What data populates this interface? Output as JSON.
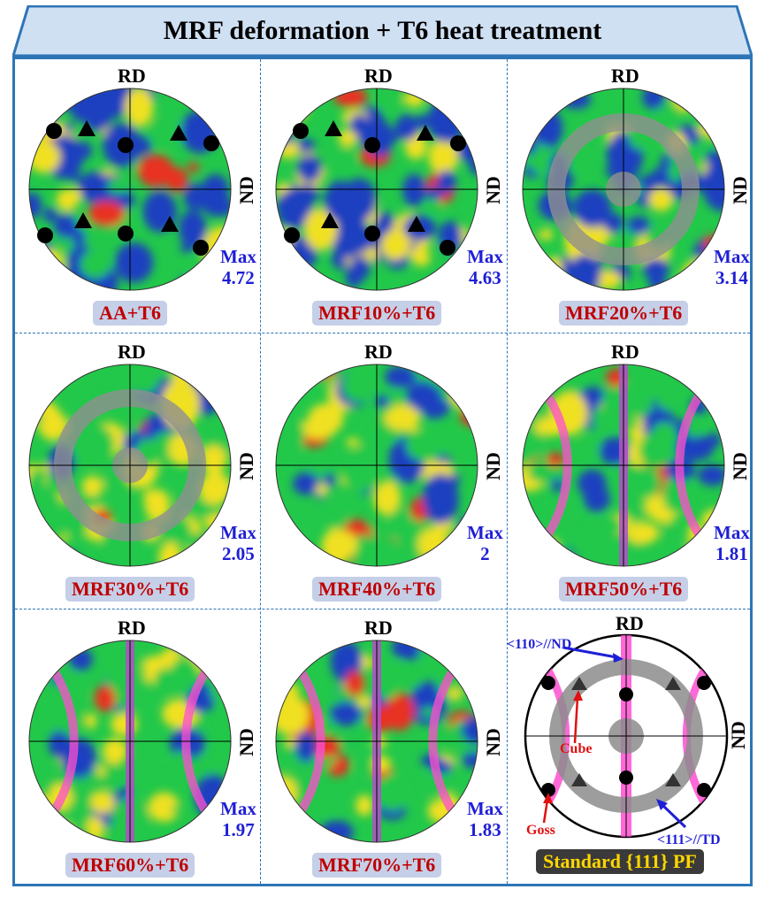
{
  "title": "MRF deformation + T6 heat treatment",
  "axis_labels": {
    "rd": "RD",
    "nd": "ND"
  },
  "max_prefix": "Max",
  "panels": [
    {
      "caption": "AA+T6",
      "max_value": "4.72",
      "overlay": "cube-goss-markers"
    },
    {
      "caption": "MRF10%+T6",
      "max_value": "4.63",
      "overlay": "cube-goss-markers"
    },
    {
      "caption": "MRF20%+T6",
      "max_value": "3.14",
      "overlay": "gray-ring"
    },
    {
      "caption": "MRF30%+T6",
      "max_value": "2.05",
      "overlay": "gray-ring"
    },
    {
      "caption": "MRF40%+T6",
      "max_value": "2",
      "overlay": "none"
    },
    {
      "caption": "MRF50%+T6",
      "max_value": "1.81",
      "overlay": "magenta-fiber"
    },
    {
      "caption": "MRF60%+T6",
      "max_value": "1.97",
      "overlay": "magenta-fiber"
    },
    {
      "caption": "MRF70%+T6",
      "max_value": "1.83",
      "overlay": "magenta-fiber"
    }
  ],
  "standard": {
    "caption": "Standard {111} PF",
    "label_110": "<110>//ND",
    "label_111": "<111>//TD",
    "label_cube": "Cube",
    "label_goss": "Goss"
  },
  "colors": {
    "frame": "#2e75b6",
    "banner": "#cfe0f3",
    "max_text": "#1f1fd6",
    "caption_text": "#c00000",
    "caption_bg": "#c5cfe8",
    "texture_low": "#1a3fbf",
    "texture_mid": "#22c84a",
    "texture_high": "#f0e020",
    "texture_peak": "#e83020",
    "fiber": "#ff4fd0",
    "ring": "#909090"
  }
}
